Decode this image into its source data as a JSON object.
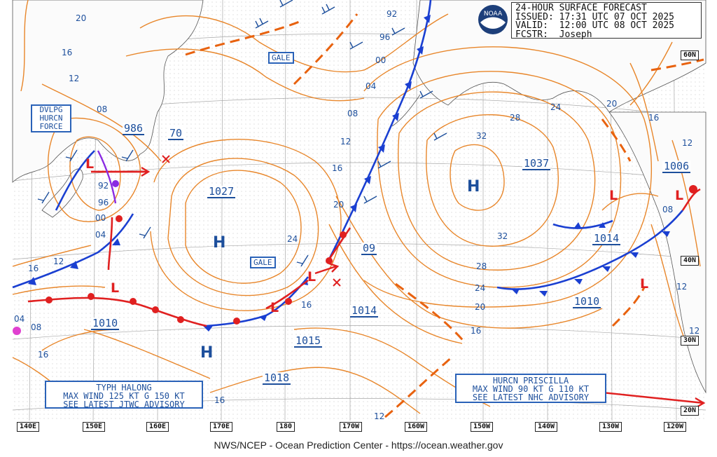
{
  "header": {
    "line1": "24-HOUR SURFACE FORECAST",
    "line2": "ISSUED: 17:31 UTC 07 OCT 2025",
    "line3": "VALID:  12:00 UTC 08 OCT 2025",
    "line4": "FCSTR:  Joseph"
  },
  "logo": {
    "text": "NOAA"
  },
  "footer": "NWS/NCEP - Ocean Prediction Center - https://ocean.weather.gov",
  "lat_labels": [
    "60N",
    "40N",
    "30N",
    "20N"
  ],
  "lon_labels": [
    "140E",
    "150E",
    "160E",
    "170E",
    "180",
    "170W",
    "160W",
    "150W",
    "140W",
    "130W",
    "120W"
  ],
  "pressure_centers": [
    {
      "type": "H",
      "value": "1027"
    },
    {
      "type": "H",
      "value": "1037"
    },
    {
      "type": "H",
      "value": ""
    },
    {
      "type": "L",
      "value": "986"
    },
    {
      "type": "L",
      "value": "1010"
    },
    {
      "type": "L",
      "value": "1014"
    },
    {
      "type": "L",
      "value": "1015"
    },
    {
      "type": "L",
      "value": "1018"
    },
    {
      "type": "L",
      "value": "1014"
    },
    {
      "type": "L",
      "value": "1010"
    },
    {
      "type": "L",
      "value": "1006"
    },
    {
      "type": "L",
      "value": "70"
    },
    {
      "type": "L",
      "value": "09"
    }
  ],
  "warnings": {
    "gale_1": "GALE",
    "gale_2": "GALE",
    "dvlpg": "DVLPG\nHURCN\nFORCE"
  },
  "advisories": {
    "typhoon": "TYPH HALONG\nMAX WIND 125 KT G 150 KT\nSEE LATEST JTWC ADVISORY",
    "hurricane": "HURCN PRISCILLA\nMAX WIND 90 KT G 110 KT\nSEE LATEST NHC ADVISORY"
  },
  "isobar_labels": [
    "20",
    "16",
    "12",
    "08",
    "92",
    "96",
    "00",
    "04",
    "04",
    "08",
    "12",
    "16",
    "20",
    "24",
    "28",
    "32",
    "32",
    "28",
    "24",
    "20",
    "16",
    "12",
    "16",
    "20",
    "24",
    "16",
    "12",
    "12",
    "08",
    "12",
    "92",
    "96",
    "00",
    "04",
    "08",
    "16",
    "12",
    "16",
    "16"
  ],
  "colors": {
    "isobar": "#e8862a",
    "blue": "#1d4f9c",
    "cold_front": "#1a3fd1",
    "warm_front": "#e02020",
    "trough": "#e8620f",
    "land": "#fafafa",
    "grid": "#9a9a9a"
  }
}
